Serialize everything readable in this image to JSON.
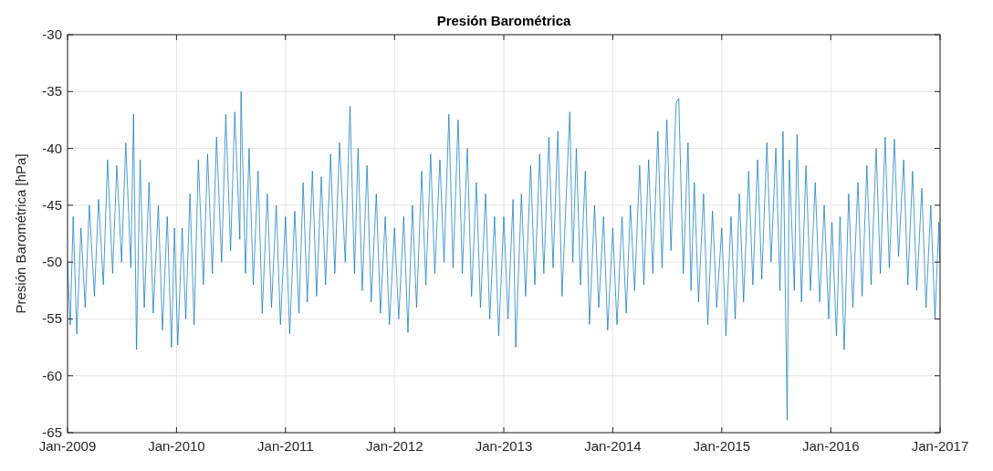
{
  "chart_data": {
    "type": "line",
    "title": "Presión Barométrica",
    "ylabel": "Presión Barométrica [hPa]",
    "x": [
      "2009-01-01",
      "2009-01-10",
      "2009-01-20",
      "2009-02-01",
      "2009-02-15",
      "2009-03-01",
      "2009-03-15",
      "2009-04-01",
      "2009-04-15",
      "2009-05-01",
      "2009-05-15",
      "2009-06-01",
      "2009-06-15",
      "2009-07-01",
      "2009-07-15",
      "2009-08-01",
      "2009-08-10",
      "2009-08-20",
      "2009-09-01",
      "2009-09-15",
      "2009-10-01",
      "2009-10-15",
      "2009-11-01",
      "2009-11-15",
      "2009-12-01",
      "2009-12-15",
      "2009-12-25",
      "2010-01-05",
      "2010-01-20",
      "2010-02-01",
      "2010-02-15",
      "2010-03-01",
      "2010-03-15",
      "2010-04-01",
      "2010-04-15",
      "2010-05-01",
      "2010-05-15",
      "2010-06-01",
      "2010-06-15",
      "2010-07-01",
      "2010-07-15",
      "2010-08-01",
      "2010-08-05",
      "2010-08-20",
      "2010-09-01",
      "2010-09-15",
      "2010-10-01",
      "2010-10-15",
      "2010-11-01",
      "2010-11-15",
      "2010-12-01",
      "2010-12-15",
      "2011-01-01",
      "2011-01-15",
      "2011-02-01",
      "2011-02-15",
      "2011-03-01",
      "2011-03-15",
      "2011-04-01",
      "2011-04-15",
      "2011-05-01",
      "2011-05-15",
      "2011-06-01",
      "2011-06-15",
      "2011-07-01",
      "2011-07-20",
      "2011-08-05",
      "2011-08-20",
      "2011-09-01",
      "2011-09-15",
      "2011-10-01",
      "2011-10-15",
      "2011-11-01",
      "2011-11-15",
      "2011-12-01",
      "2011-12-15",
      "2012-01-01",
      "2012-01-15",
      "2012-02-01",
      "2012-02-15",
      "2012-03-01",
      "2012-03-15",
      "2012-04-01",
      "2012-04-15",
      "2012-05-01",
      "2012-05-15",
      "2012-06-01",
      "2012-06-15",
      "2012-07-01",
      "2012-07-15",
      "2012-08-01",
      "2012-08-15",
      "2012-09-01",
      "2012-09-15",
      "2012-10-01",
      "2012-10-15",
      "2012-11-01",
      "2012-11-15",
      "2012-12-01",
      "2012-12-15",
      "2013-01-01",
      "2013-01-15",
      "2013-02-01",
      "2013-02-10",
      "2013-03-01",
      "2013-03-15",
      "2013-04-01",
      "2013-04-15",
      "2013-05-01",
      "2013-05-15",
      "2013-06-01",
      "2013-06-15",
      "2013-07-01",
      "2013-07-15",
      "2013-08-10",
      "2013-08-20",
      "2013-09-01",
      "2013-09-15",
      "2013-10-01",
      "2013-10-15",
      "2013-11-01",
      "2013-11-15",
      "2013-12-01",
      "2013-12-15",
      "2014-01-01",
      "2014-01-15",
      "2014-02-01",
      "2014-02-15",
      "2014-03-01",
      "2014-03-15",
      "2014-04-01",
      "2014-04-15",
      "2014-05-01",
      "2014-05-15",
      "2014-06-01",
      "2014-06-15",
      "2014-07-01",
      "2014-07-15",
      "2014-08-01",
      "2014-08-10",
      "2014-08-25",
      "2014-09-10",
      "2014-09-20",
      "2014-10-01",
      "2014-10-15",
      "2014-11-01",
      "2014-11-15",
      "2014-12-01",
      "2014-12-15",
      "2015-01-01",
      "2015-01-15",
      "2015-02-01",
      "2015-02-15",
      "2015-03-01",
      "2015-03-15",
      "2015-04-01",
      "2015-04-15",
      "2015-05-01",
      "2015-05-15",
      "2015-06-01",
      "2015-06-15",
      "2015-07-01",
      "2015-07-15",
      "2015-07-25",
      "2015-08-08",
      "2015-08-15",
      "2015-09-01",
      "2015-09-10",
      "2015-09-25",
      "2015-10-10",
      "2015-10-25",
      "2015-11-10",
      "2015-11-25",
      "2015-12-10",
      "2015-12-25",
      "2016-01-05",
      "2016-01-20",
      "2016-02-01",
      "2016-02-15",
      "2016-03-01",
      "2016-03-15",
      "2016-04-01",
      "2016-04-15",
      "2016-05-01",
      "2016-05-15",
      "2016-06-01",
      "2016-06-15",
      "2016-07-01",
      "2016-07-15",
      "2016-08-01",
      "2016-08-15",
      "2016-09-01",
      "2016-09-15",
      "2016-10-01",
      "2016-10-15",
      "2016-11-01",
      "2016-11-15",
      "2016-12-01",
      "2016-12-15",
      "2016-12-28",
      "2016-12-31"
    ],
    "series": [
      {
        "color": "#0072bd",
        "values": [
          -50,
          -55.5,
          -46,
          -56.3,
          -47,
          -54,
          -45,
          -53,
          -44.5,
          -52,
          -41,
          -51,
          -41.5,
          -50,
          -39.5,
          -50.5,
          -37,
          -57.7,
          -41,
          -54,
          -43,
          -54.5,
          -45,
          -56,
          -46,
          -57.5,
          -47,
          -57.3,
          -47,
          -55,
          -44,
          -55.5,
          -41,
          -52,
          -40.5,
          -51,
          -39,
          -50,
          -37,
          -49,
          -36.8,
          -48,
          -35,
          -51,
          -40,
          -52,
          -42,
          -54.5,
          -44,
          -54,
          -45,
          -55.5,
          -46,
          -56.3,
          -45.5,
          -54.5,
          -43,
          -53.5,
          -42,
          -53,
          -42.5,
          -52,
          -40.5,
          -51,
          -39.5,
          -50,
          -36.3,
          -51,
          -40,
          -52.5,
          -41.5,
          -53.5,
          -44,
          -54.5,
          -46,
          -55.5,
          -47,
          -55,
          -46,
          -56.2,
          -45,
          -54,
          -42,
          -52,
          -40.5,
          -51,
          -41,
          -50,
          -37,
          -50.5,
          -37.5,
          -51,
          -40,
          -53,
          -43,
          -54,
          -44,
          -55,
          -46,
          -56.5,
          -46,
          -55,
          -44.5,
          -57.5,
          -44,
          -53,
          -41.5,
          -52,
          -40.5,
          -51,
          -39,
          -50.5,
          -38.5,
          -53,
          -36.8,
          -50,
          -40,
          -52,
          -42,
          -55.5,
          -45,
          -54,
          -46,
          -56,
          -47,
          -55.5,
          -46,
          -54.5,
          -45,
          -52.5,
          -41.5,
          -52,
          -41,
          -51,
          -38.5,
          -50.5,
          -37.5,
          -49,
          -36,
          -35.6,
          -51,
          -39.5,
          -52.5,
          -43,
          -53.5,
          -44,
          -55.5,
          -45.5,
          -54,
          -47,
          -56.5,
          -46,
          -55,
          -44,
          -53.5,
          -42,
          -52,
          -41,
          -51.5,
          -39.5,
          -50,
          -40,
          -52.5,
          -38.5,
          -63.9,
          -41,
          -52.5,
          -38.8,
          -53.5,
          -41.5,
          -52.5,
          -43,
          -53.5,
          -45,
          -55,
          -46.5,
          -56.5,
          -46,
          -57.7,
          -44,
          -54,
          -43,
          -53,
          -41.5,
          -52,
          -40,
          -51,
          -39,
          -50.5,
          -39.2,
          -49.5,
          -41,
          -52,
          -42,
          -52.5,
          -43.5,
          -54,
          -45,
          -55,
          -46.5,
          -50
        ]
      }
    ],
    "xlim": [
      "2009-01-01",
      "2017-01-01"
    ],
    "xticks": [
      {
        "value": "2009-01-01",
        "label": "Jan-2009"
      },
      {
        "value": "2010-01-01",
        "label": "Jan-2010"
      },
      {
        "value": "2011-01-01",
        "label": "Jan-2011"
      },
      {
        "value": "2012-01-01",
        "label": "Jan-2012"
      },
      {
        "value": "2013-01-01",
        "label": "Jan-2013"
      },
      {
        "value": "2014-01-01",
        "label": "Jan-2014"
      },
      {
        "value": "2015-01-01",
        "label": "Jan-2015"
      },
      {
        "value": "2016-01-01",
        "label": "Jan-2016"
      },
      {
        "value": "2017-01-01",
        "label": "Jan-2017"
      }
    ],
    "ylim": [
      -65,
      -30
    ],
    "yticks": [
      -65,
      -60,
      -55,
      -50,
      -45,
      -40,
      -35,
      -30
    ],
    "grid": true,
    "line_style": "solid"
  }
}
